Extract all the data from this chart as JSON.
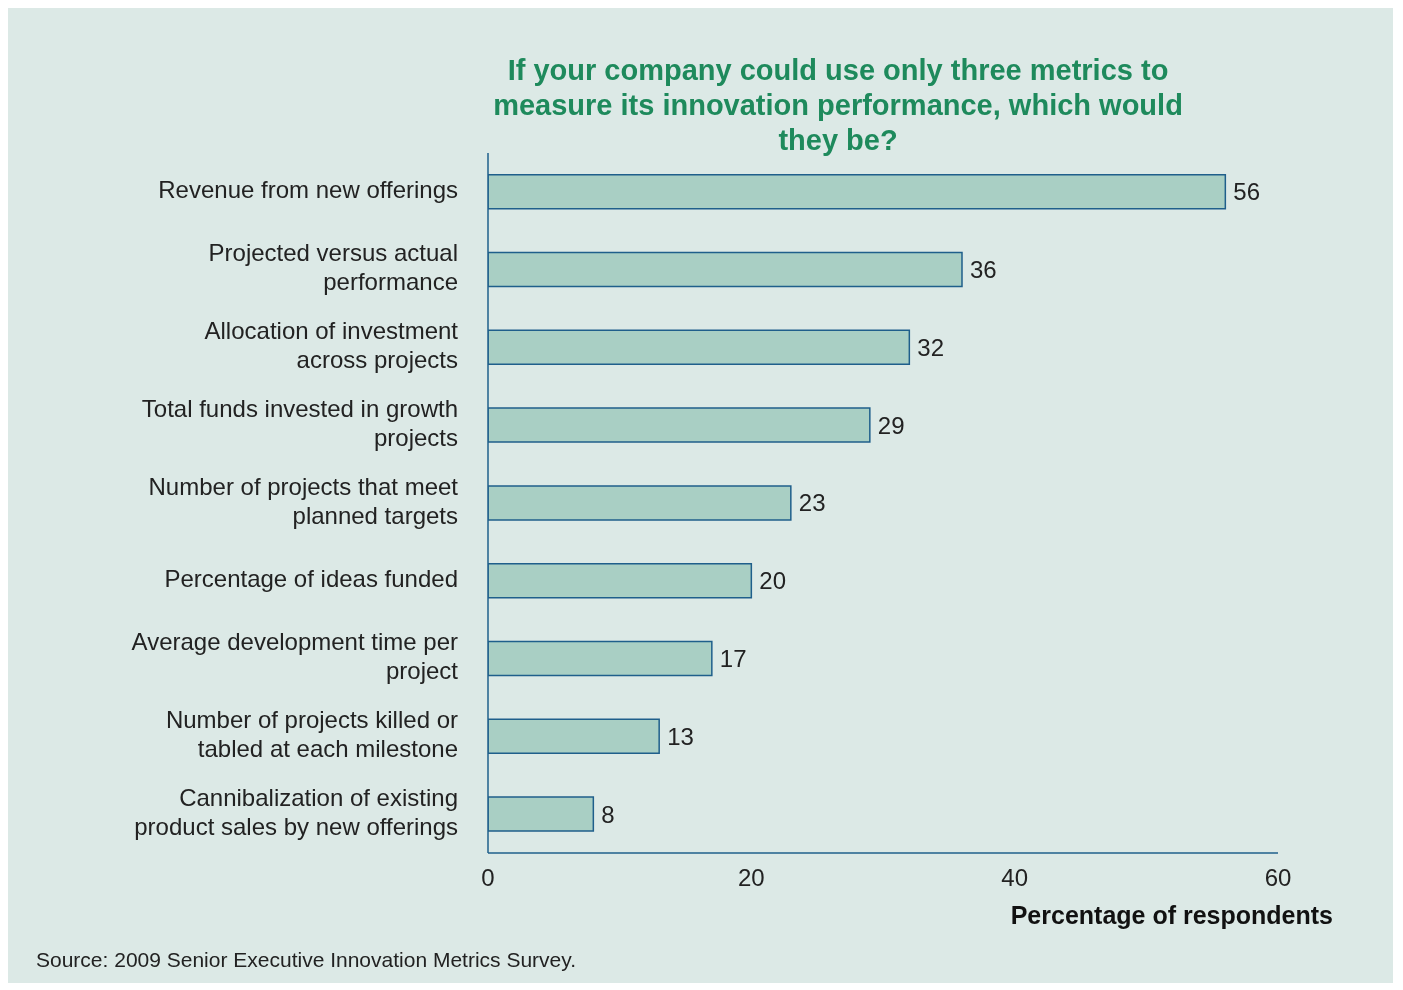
{
  "chart_data": {
    "type": "bar",
    "orientation": "horizontal",
    "title": "If your company could use only three metrics to measure its innovation performance, which would they be?",
    "categories": [
      "Revenue from new offerings",
      "Projected versus actual performance",
      "Allocation of investment across projects",
      "Total funds invested in growth projects",
      "Number of projects that meet planned targets",
      "Percentage of ideas funded",
      "Average development time per project",
      "Number of projects killed or tabled at each milestone",
      "Cannibalization of existing product sales by new offerings"
    ],
    "values": [
      56,
      36,
      32,
      29,
      23,
      20,
      17,
      13,
      8
    ],
    "color": "#a9cfc4",
    "xlim": [
      0,
      60
    ],
    "xticks": [
      0,
      20,
      40,
      60
    ],
    "xlabel": "Percentage of respondents",
    "data_labels": true,
    "grid": false,
    "legend": false,
    "annotations": [
      "Source: 2009 Senior Executive Innovation Metrics Survey."
    ]
  }
}
